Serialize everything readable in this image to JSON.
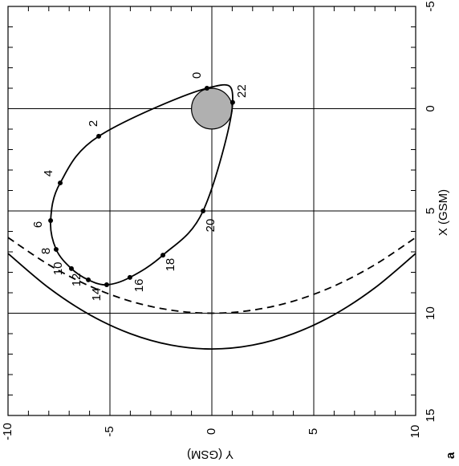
{
  "chart_data": {
    "type": "orbit",
    "xlabel": "X (GSM)",
    "ylabel": "Y (GSM)",
    "panel_label": "a",
    "xlim": [
      -5,
      15
    ],
    "xticks": [
      -5,
      0,
      5,
      10,
      15
    ],
    "ylim": [
      -10,
      10
    ],
    "yticks": [
      -10,
      -5,
      0,
      5,
      10
    ],
    "grid": true,
    "earth": {
      "x": 0,
      "y": 0,
      "radius": 1,
      "color": "#b0b0b0"
    },
    "series": [
      {
        "kind": "orbit",
        "color": "#000000",
        "closed": true,
        "hours": [
          0,
          2,
          4,
          6,
          8,
          10,
          12,
          14,
          16,
          18,
          20,
          22
        ],
        "x": [
          -1.0,
          1.35,
          3.63,
          5.47,
          6.88,
          7.82,
          8.37,
          8.61,
          8.25,
          7.16,
          5.0,
          -0.31
        ],
        "values": [
          -0.24,
          -5.55,
          -7.44,
          -7.91,
          -7.64,
          -6.89,
          -6.06,
          -5.16,
          -4.02,
          -2.4,
          -0.43,
          1.02
        ]
      },
      {
        "kind": "magnetopause",
        "color": "#000000",
        "dashed": true,
        "x": [
          6.3,
          7.63,
          8.67,
          9.41,
          9.85,
          10,
          9.85,
          9.41,
          8.67,
          7.63,
          6.3
        ],
        "values": [
          -10,
          -8,
          -6,
          -4,
          -2,
          0,
          2,
          4,
          6,
          8,
          10
        ]
      },
      {
        "kind": "bow-shock",
        "color": "#000000",
        "dashed": false,
        "x": [
          7.08,
          8.76,
          10.07,
          11.0,
          11.56,
          11.75,
          11.56,
          11.0,
          10.07,
          8.76,
          7.08
        ],
        "values": [
          -10,
          -8,
          -6,
          -4,
          -2,
          0,
          2,
          4,
          6,
          8,
          10
        ]
      }
    ]
  }
}
